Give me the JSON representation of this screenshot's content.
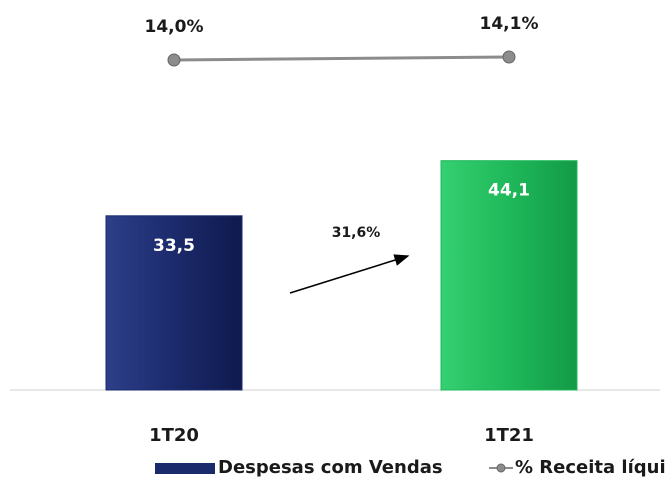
{
  "chart_data": {
    "type": "bar",
    "categories": [
      "1T20",
      "1T21"
    ],
    "series": [
      {
        "name": "Despesas com Vendas",
        "type": "bar",
        "color": "#1b2a6b",
        "values": [
          33.5,
          44.1
        ],
        "value_labels": [
          "33,5",
          "44,1"
        ]
      },
      {
        "name": "% Receita líquida",
        "type": "line",
        "axis": "y2",
        "color": "#8c8c8c",
        "values": [
          14.0,
          14.1
        ],
        "value_labels": [
          "14,0%",
          "14,1%"
        ]
      }
    ],
    "bar_colors": [
      "#1b2a6b",
      "#1fb85a"
    ],
    "ylim": [
      0,
      75
    ],
    "y2lim": [
      3,
      16
    ],
    "annotation": "31,6%",
    "legend": "bottom"
  }
}
